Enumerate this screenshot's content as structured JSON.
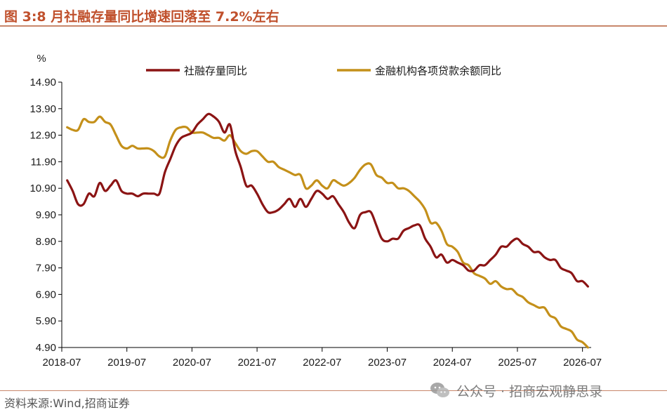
{
  "header": {
    "title": "图 3:8 月社融存量同比增速回落至 7.2%左右"
  },
  "footer": {
    "source": "资料来源:Wind,招商证券",
    "watermark": "公众号 · 招商宏观静思录"
  },
  "colors": {
    "accent": "#c0502c",
    "series1": "#8b1414",
    "series2": "#c4901a"
  },
  "icons": {
    "watermark_logo": "wechat-icon"
  },
  "chart_data": {
    "type": "line",
    "title": "",
    "ylabel": "%",
    "xlabel": "",
    "ylim": [
      4.9,
      14.9
    ],
    "yticks": [
      "14.90",
      "13.90",
      "12.90",
      "11.90",
      "10.90",
      "9.90",
      "8.90",
      "7.90",
      "6.90",
      "5.90",
      "4.90"
    ],
    "xticks": [
      "2018-07",
      "2019-07",
      "2020-07",
      "2021-07",
      "2022-07",
      "2023-07",
      "2024-07",
      "2025-07",
      "2026-07"
    ],
    "grid": false,
    "legend_position": "top",
    "series": [
      {
        "name": "社融存量同比",
        "points": [
          [
            "2018-08",
            11.2
          ],
          [
            "2018-09",
            10.8
          ],
          [
            "2018-10",
            10.3
          ],
          [
            "2018-11",
            10.3
          ],
          [
            "2018-12",
            10.7
          ],
          [
            "2019-01",
            10.6
          ],
          [
            "2019-02",
            11.1
          ],
          [
            "2019-03",
            10.8
          ],
          [
            "2019-04",
            11.0
          ],
          [
            "2019-05",
            11.2
          ],
          [
            "2019-06",
            10.8
          ],
          [
            "2019-07",
            10.7
          ],
          [
            "2019-08",
            10.7
          ],
          [
            "2019-09",
            10.6
          ],
          [
            "2019-10",
            10.7
          ],
          [
            "2019-11",
            10.7
          ],
          [
            "2019-12",
            10.7
          ],
          [
            "2020-01",
            10.7
          ],
          [
            "2020-02",
            11.5
          ],
          [
            "2020-03",
            12.0
          ],
          [
            "2020-04",
            12.5
          ],
          [
            "2020-05",
            12.8
          ],
          [
            "2020-06",
            12.9
          ],
          [
            "2020-07",
            13.0
          ],
          [
            "2020-08",
            13.3
          ],
          [
            "2020-09",
            13.5
          ],
          [
            "2020-10",
            13.7
          ],
          [
            "2020-11",
            13.6
          ],
          [
            "2020-12",
            13.4
          ],
          [
            "2021-01",
            13.0
          ],
          [
            "2021-02",
            13.3
          ],
          [
            "2021-03",
            12.3
          ],
          [
            "2021-04",
            11.7
          ],
          [
            "2021-05",
            11.0
          ],
          [
            "2021-06",
            11.0
          ],
          [
            "2021-07",
            10.7
          ],
          [
            "2021-08",
            10.3
          ],
          [
            "2021-09",
            10.0
          ],
          [
            "2021-10",
            10.0
          ],
          [
            "2021-11",
            10.1
          ],
          [
            "2021-12",
            10.3
          ],
          [
            "2022-01",
            10.5
          ],
          [
            "2022-02",
            10.2
          ],
          [
            "2022-03",
            10.5
          ],
          [
            "2022-04",
            10.2
          ],
          [
            "2022-05",
            10.5
          ],
          [
            "2022-06",
            10.8
          ],
          [
            "2022-07",
            10.7
          ],
          [
            "2022-08",
            10.5
          ],
          [
            "2022-09",
            10.6
          ],
          [
            "2022-10",
            10.3
          ],
          [
            "2022-11",
            10.0
          ],
          [
            "2022-12",
            9.6
          ],
          [
            "2023-01",
            9.4
          ],
          [
            "2023-02",
            9.9
          ],
          [
            "2023-03",
            10.0
          ],
          [
            "2023-04",
            10.0
          ],
          [
            "2023-05",
            9.5
          ],
          [
            "2023-06",
            9.0
          ],
          [
            "2023-07",
            8.9
          ],
          [
            "2023-08",
            9.0
          ],
          [
            "2023-09",
            9.0
          ],
          [
            "2023-10",
            9.3
          ],
          [
            "2023-11",
            9.4
          ],
          [
            "2023-12",
            9.5
          ],
          [
            "2024-01",
            9.5
          ],
          [
            "2024-02",
            9.0
          ],
          [
            "2024-03",
            8.7
          ],
          [
            "2024-04",
            8.3
          ],
          [
            "2024-05",
            8.4
          ],
          [
            "2024-06",
            8.1
          ],
          [
            "2024-07",
            8.2
          ],
          [
            "2024-08",
            8.1
          ],
          [
            "2024-09",
            8.0
          ],
          [
            "2024-10",
            7.8
          ],
          [
            "2024-11",
            7.8
          ],
          [
            "2024-12",
            8.0
          ],
          [
            "2025-01",
            8.0
          ],
          [
            "2025-02",
            8.2
          ],
          [
            "2025-03",
            8.4
          ],
          [
            "2025-04",
            8.7
          ],
          [
            "2025-05",
            8.7
          ],
          [
            "2025-06",
            8.9
          ],
          [
            "2025-07",
            9.0
          ],
          [
            "2025-08",
            8.8
          ],
          [
            "2025-09",
            8.7
          ],
          [
            "2025-10",
            8.5
          ],
          [
            "2025-11",
            8.5
          ],
          [
            "2025-12",
            8.3
          ],
          [
            "2026-01",
            8.2
          ],
          [
            "2026-02",
            8.2
          ],
          [
            "2026-03",
            7.9
          ],
          [
            "2026-04",
            7.8
          ],
          [
            "2026-05",
            7.7
          ],
          [
            "2026-06",
            7.4
          ],
          [
            "2026-07",
            7.4
          ],
          [
            "2026-08",
            7.2
          ]
        ]
      },
      {
        "name": "金融机构各项贷款余额同比",
        "points": [
          [
            "2018-08",
            13.2
          ],
          [
            "2018-09",
            13.1
          ],
          [
            "2018-10",
            13.1
          ],
          [
            "2018-11",
            13.5
          ],
          [
            "2018-12",
            13.4
          ],
          [
            "2019-01",
            13.4
          ],
          [
            "2019-02",
            13.6
          ],
          [
            "2019-03",
            13.4
          ],
          [
            "2019-04",
            13.3
          ],
          [
            "2019-05",
            12.9
          ],
          [
            "2019-06",
            12.5
          ],
          [
            "2019-07",
            12.4
          ],
          [
            "2019-08",
            12.5
          ],
          [
            "2019-09",
            12.4
          ],
          [
            "2019-10",
            12.4
          ],
          [
            "2019-11",
            12.4
          ],
          [
            "2019-12",
            12.3
          ],
          [
            "2020-01",
            12.1
          ],
          [
            "2020-02",
            12.1
          ],
          [
            "2020-03",
            12.7
          ],
          [
            "2020-04",
            13.1
          ],
          [
            "2020-05",
            13.2
          ],
          [
            "2020-06",
            13.2
          ],
          [
            "2020-07",
            13.0
          ],
          [
            "2020-08",
            13.0
          ],
          [
            "2020-09",
            13.0
          ],
          [
            "2020-10",
            12.9
          ],
          [
            "2020-11",
            12.8
          ],
          [
            "2020-12",
            12.8
          ],
          [
            "2021-01",
            12.7
          ],
          [
            "2021-02",
            12.9
          ],
          [
            "2021-03",
            12.6
          ],
          [
            "2021-04",
            12.3
          ],
          [
            "2021-05",
            12.2
          ],
          [
            "2021-06",
            12.3
          ],
          [
            "2021-07",
            12.3
          ],
          [
            "2021-08",
            12.1
          ],
          [
            "2021-09",
            11.9
          ],
          [
            "2021-10",
            11.9
          ],
          [
            "2021-11",
            11.7
          ],
          [
            "2021-12",
            11.6
          ],
          [
            "2022-01",
            11.5
          ],
          [
            "2022-02",
            11.4
          ],
          [
            "2022-03",
            11.4
          ],
          [
            "2022-04",
            10.9
          ],
          [
            "2022-05",
            11.0
          ],
          [
            "2022-06",
            11.2
          ],
          [
            "2022-07",
            11.0
          ],
          [
            "2022-08",
            10.9
          ],
          [
            "2022-09",
            11.2
          ],
          [
            "2022-10",
            11.1
          ],
          [
            "2022-11",
            11.0
          ],
          [
            "2022-12",
            11.1
          ],
          [
            "2023-01",
            11.3
          ],
          [
            "2023-02",
            11.6
          ],
          [
            "2023-03",
            11.8
          ],
          [
            "2023-04",
            11.8
          ],
          [
            "2023-05",
            11.4
          ],
          [
            "2023-06",
            11.3
          ],
          [
            "2023-07",
            11.1
          ],
          [
            "2023-08",
            11.1
          ],
          [
            "2023-09",
            10.9
          ],
          [
            "2023-10",
            10.9
          ],
          [
            "2023-11",
            10.8
          ],
          [
            "2023-12",
            10.6
          ],
          [
            "2024-01",
            10.4
          ],
          [
            "2024-02",
            10.1
          ],
          [
            "2024-03",
            9.6
          ],
          [
            "2024-04",
            9.6
          ],
          [
            "2024-05",
            9.3
          ],
          [
            "2024-06",
            8.8
          ],
          [
            "2024-07",
            8.7
          ],
          [
            "2024-08",
            8.5
          ],
          [
            "2024-09",
            8.1
          ],
          [
            "2024-10",
            8.0
          ],
          [
            "2024-11",
            7.7
          ],
          [
            "2024-12",
            7.6
          ],
          [
            "2025-01",
            7.5
          ],
          [
            "2025-02",
            7.3
          ],
          [
            "2025-03",
            7.4
          ],
          [
            "2025-04",
            7.2
          ],
          [
            "2025-05",
            7.1
          ],
          [
            "2025-06",
            7.1
          ],
          [
            "2025-07",
            6.9
          ],
          [
            "2025-08",
            6.8
          ],
          [
            "2025-09",
            6.6
          ],
          [
            "2025-10",
            6.5
          ],
          [
            "2025-11",
            6.4
          ],
          [
            "2025-12",
            6.4
          ],
          [
            "2026-01",
            6.1
          ],
          [
            "2026-02",
            6.0
          ],
          [
            "2026-03",
            5.7
          ],
          [
            "2026-04",
            5.6
          ],
          [
            "2026-05",
            5.5
          ],
          [
            "2026-06",
            5.2
          ],
          [
            "2026-07",
            5.1
          ],
          [
            "2026-08",
            4.9
          ]
        ]
      }
    ]
  }
}
